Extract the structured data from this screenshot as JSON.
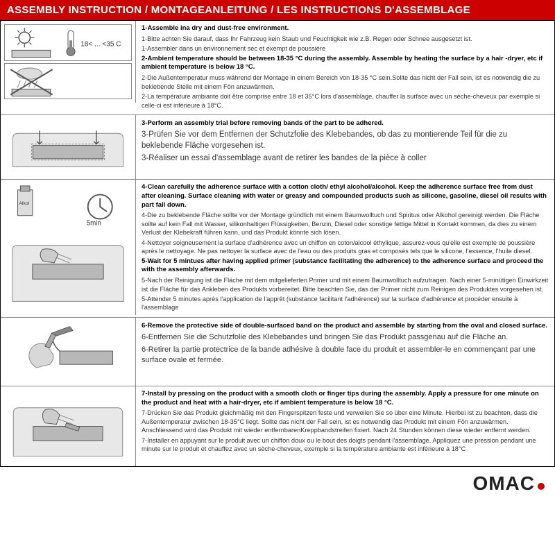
{
  "header": "ASSEMBLY INSTRUCTION / MONTAGEANLEITUNG / LES INSTRUCTIONS D'ASSEMBLAGE",
  "colors": {
    "brand_red": "#cc0000",
    "text": "#333333",
    "border": "#888888"
  },
  "logo": "OMAC",
  "sections": [
    {
      "lines": [
        {
          "bold": true,
          "text": "1-Assemble ina dry and dust-free environment."
        },
        {
          "bold": false,
          "text": "1-Bitte achten Sie darauf, dass Ihr Fahrzeug kein Staub und Feuchtigkeit wie z.B. Regen oder Schnee ausgesetzt ist."
        },
        {
          "bold": false,
          "text": "1-Assembler dans un environnement sec et exempt de poussière"
        },
        {
          "bold": true,
          "text": "2-Ambient temperature should be between 18-35 °C  during the assembly. Assemble by heating the surface by a hair -dryer, etc if ambient temperature is below 18 °C."
        },
        {
          "bold": false,
          "text": "2-Die Außentemperatur muss während der Montage in einem Bereich von 18-35 °C  sein.Sollte das nicht der Fall sein, ist es notwendig die zu beklebende Stelle mit einem Fön anzuwärmen."
        },
        {
          "bold": false,
          "text": "2-La température ambiante doit être comprise entre 18 et 35°C lors d'assemblage, chauffer la surface avec un sèche-cheveux par exemple si celle-ci est inférieure à 18°C."
        }
      ]
    },
    {
      "lines": [
        {
          "bold": true,
          "text": "3-Perform an assembly trial before removing bands of the part to be adhered."
        },
        {
          "bold": false,
          "text": "3-Prüfen Sie vor dem Entfernen der Schutzfolie des Klebebandes, ob das zu montierende Teil für die zu beklebende Fläche vorgesehen ist."
        },
        {
          "bold": false,
          "text": "3-Réaliser un essai d'assemblage avant de retirer les bandes de la pièce à coller"
        }
      ]
    },
    {
      "lines": [
        {
          "bold": true,
          "text": "4-Clean carefully the adherence surface with a cotton cloth/ ethyl alcohol/alcohol. Keep the adherence surface free from dust after cleaning. Surface cleaning with water or greasy and compounded products such as silicone, gasoline, diesel oil results with part fall down."
        },
        {
          "bold": false,
          "text": "4-Die zu beklebende Fläche sollte vor der Montage gründlich mit einem Baumwolltuch und Spiritus oder Alkohol gereinigt werden. Die Fläche sollte auf kein Fall mit Wasser, silikonhaltigen Flüssigkeiten, Benzin, Diesel oder sonstige fettige Mittel in Kontakt kommen, da dies zu einem Verlust der Klebekraft führen kann, und das Produkt könnte sich lösen."
        },
        {
          "bold": false,
          "text": "4-Nettoyer soigneusement la surface d'adhérence avec un chiffon en coton/alcool éthylique, assurez-vous qu'elle est exempte de poussière après le nettoyage. Ne pas nettoyer la surface avec de l'eau ou des produits gras et composés tels que le silicone, l'essence, l'huile diesel."
        },
        {
          "bold": true,
          "text": "5-Wait for 5 mintues after having applied primer (substance facilitating the adherence) to the adherence surface and proceed the with the assembly afterwards."
        },
        {
          "bold": false,
          "text": "5-Nach der Reinigung ist die Fläche mit dem mitgelieferten Primer und mit einem Baumwolltuch aufzutragen. Nach einer 5-minütigen Einwirkzeit ist die Fläche für das Ankleben des Produkts vorbereitet. Bitte beachten Sie, das der Primer nicht zum Reinigen des Produktes vorgesehen ist."
        },
        {
          "bold": false,
          "text": "5-Attender 5 minutes après l'application de l'apprêt (substance facilitant l'adhérence) sur la surface d'adhérence et procéder ensuite à l'assemblage"
        }
      ]
    },
    {
      "lines": [
        {
          "bold": true,
          "text": "6-Remove the protective side of double-surfaced band on the product and assemble by starting from the oval and closed surface."
        },
        {
          "bold": false,
          "text": "6-Entfernen Sie die Schutzfolie des Klebebandes und bringen Sie das Produkt passgenau auf die Fläche an."
        },
        {
          "bold": false,
          "text": "6-Retirer la partie protectrice de la bande adhésive à double face du produit et assembler-le en commençant par une surface ovale et fermée."
        }
      ]
    },
    {
      "lines": [
        {
          "bold": true,
          "text": "7-Install by pressing on the product with a smooth cloth or finger tips during the assembly. Apply a pressure for one minute on the product and heat with a hair-dryer, etc if ambient temperature is below 18 °C."
        },
        {
          "bold": false,
          "text": "7-Drücken Sie das Produkt gleichmäßig mit den Fingerspitzen feste und verweilen Sie so über eine Minute. Hierbei ist zu beachten, dass die Außentemperatur zwischen 18-35°C liegt. Sollte das nicht der Fall sein, ist es notwendig das Produkt mit einem Fön anzuwärmen. Anschliessend wird das Produkt mit wieder entfernbarenKreppbandstreifen fixiert. Nach 24 Stunden können diese wieder entfernt werden."
        },
        {
          "bold": false,
          "text": "7-Installer en appuyant sur le produit avec un chiffon doux ou le bout des doigts pendant l'assemblage. Appliquez une pression pendant une minute sur le produit et chauffez avec un sèche-cheveux, exemple si la température ambiante est inférieure à 18°C"
        }
      ]
    }
  ]
}
